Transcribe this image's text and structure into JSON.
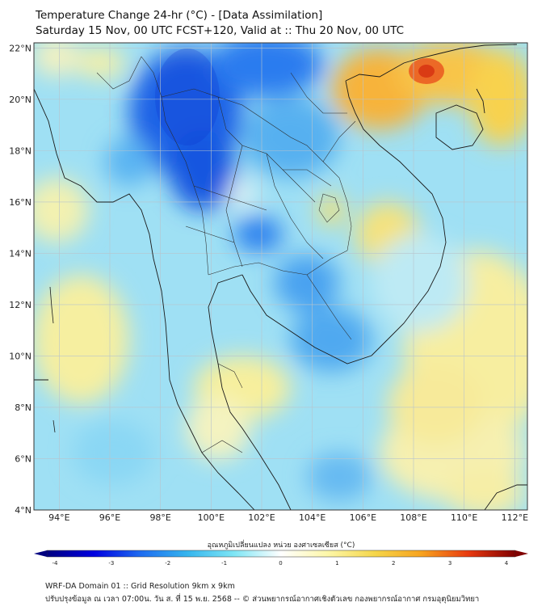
{
  "title_line1": "Temperature Change 24-hr (°C) - [Data Assimilation]",
  "title_line2": "Saturday 15 Nov, 00 UTC FCST+120, Valid at :: Thu 20 Nov, 00 UTC",
  "lon_ticks": [
    "94°E",
    "96°E",
    "98°E",
    "100°E",
    "102°E",
    "104°E",
    "106°E",
    "108°E",
    "110°E",
    "112°E"
  ],
  "lat_ticks": [
    "22°N",
    "20°N",
    "18°N",
    "16°N",
    "14°N",
    "12°N",
    "10°N",
    "8°N",
    "6°N",
    "4°N"
  ],
  "map_extent": {
    "lon": [
      93,
      112.5
    ],
    "lat": [
      4,
      22.2
    ]
  },
  "colorbar": {
    "label": "อุณหภูมิเปลี่ยนแปลง หน่วย องศาเซลเซียส (°C)",
    "range": [
      -4,
      4
    ],
    "tick_labels": [
      "-4",
      "-3",
      "-2",
      "-1",
      "0",
      "1",
      "2",
      "3",
      "4"
    ],
    "colors": [
      "#000080",
      "#0000e0",
      "#1e6cf0",
      "#35b5ee",
      "#7fe6f5",
      "#ffffff",
      "#fdf7a8",
      "#f5d64a",
      "#f7a21e",
      "#e83a10",
      "#800000"
    ]
  },
  "footer_line1": "WRF-DA Domain 01 :: Grid Resolution 9km x 9km",
  "footer_line2": "ปรับปรุงข้อมูล ณ เวลา 07:00น. วัน ส. ที่ 15 พ.ย. 2568 -- © ส่วนพยากรณ์อากาศเชิงตัวเลข กองพยากรณ์อากาศ กรมอุตุนิยมวิทยา"
}
